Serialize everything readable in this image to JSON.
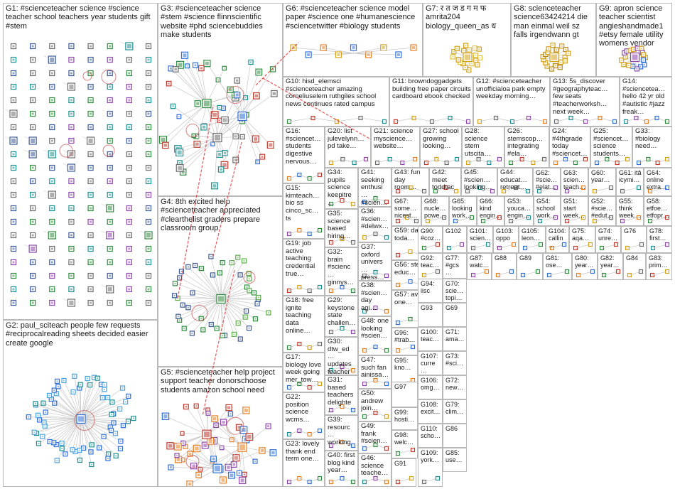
{
  "groups": [
    {
      "id": "G1",
      "label": "G1: #scienceteacher science #science teacher school teachers year students gift #stem",
      "style": "grid"
    },
    {
      "id": "G2",
      "label": "G2: paul_sciteach people few requests #reciprocalreading sheets decided easier create google",
      "style": "star"
    },
    {
      "id": "G3",
      "label": "G3: #scienceteacher science #stem #science flinnscientific website #phd sciencebuddies make students",
      "style": "cluster"
    },
    {
      "id": "G4",
      "label": "G4: 8th excited help #scienceteacher appreciated #clearthelist graders prepare classroom group",
      "style": "star"
    },
    {
      "id": "G5",
      "label": "G5: #scienceteacher help project support teacher donorschoose students amazon school need",
      "style": "cluster"
    },
    {
      "id": "G6",
      "label": "G6: #scienceteacher science model paper #science one #humanescience #sciencetwitter #biology students",
      "style": "row"
    },
    {
      "id": "G7",
      "label": "G7: र त ज ड ग म फ amrita204 biology_queen_as ध",
      "style": "star"
    },
    {
      "id": "G8",
      "label": "G8: scienceteacher science63424214 die man einmal weil sz falls irgendwann gt",
      "style": "star"
    },
    {
      "id": "G9",
      "label": "G9: apron science teacher scientist angieshandmade1 #etsy female utility womens vendor",
      "style": "star"
    },
    {
      "id": "G10",
      "label": "G10: hisd_elemsci #scienceteacher amazing corneliuselem ruthgiles school news continues rated campus",
      "style": "small"
    },
    {
      "id": "G11",
      "label": "G11: browndoggadgets building free paper circuits cardboard ebook checked",
      "style": "small"
    },
    {
      "id": "G12",
      "label": "G12: #scienceteacher unofficialoa park empty weekday morning…",
      "style": "small"
    },
    {
      "id": "G13",
      "label": "G13: 5s_discover #geographyteac… few seats #teacherworksh… next week…",
      "style": "small"
    },
    {
      "id": "G14",
      "label": "G14: #sciencetea… hello 42 yr old #autistic #jazz freak…",
      "style": "small"
    },
    {
      "id": "G15",
      "label": "G15: kimteach… bio ss cinco_sc… ts",
      "style": "small"
    },
    {
      "id": "G16",
      "label": "G16: #sciencet… students digestive nervous…",
      "style": "small"
    },
    {
      "id": "G17",
      "label": "G17: biology love week going mer_tow…",
      "style": "small"
    },
    {
      "id": "G18",
      "label": "G18: free ignite teaching data online…",
      "style": "small"
    },
    {
      "id": "G19",
      "label": "G19: job active teaching credential true…",
      "style": "small"
    },
    {
      "id": "G20",
      "label": "G20: list julevelynn… pd take…",
      "style": "small"
    },
    {
      "id": "G21",
      "label": "G21: science myscience… website…",
      "style": "small"
    },
    {
      "id": "G22",
      "label": "G22: position science wcms…",
      "style": "small"
    },
    {
      "id": "G23",
      "label": "G23: lovely thank end term one…",
      "style": "small"
    },
    {
      "id": "G24",
      "label": "G24: #4thgrade today #sciencet…",
      "style": "small"
    },
    {
      "id": "G25",
      "label": "G25: #sciencet… science students…",
      "style": "small"
    },
    {
      "id": "G26",
      "label": "G26: stemscop… integrating #ela…",
      "style": "small"
    },
    {
      "id": "G27",
      "label": "G27: school growing looking…",
      "style": "small"
    },
    {
      "id": "G28",
      "label": "G28: science stem utscita…",
      "style": "small"
    },
    {
      "id": "G29",
      "label": "G29: keystone state challen…",
      "style": "small"
    },
    {
      "id": "G30",
      "label": "G30: dtw_ed… updates teacher…",
      "style": "small"
    },
    {
      "id": "G31",
      "label": "G31: based teachers delighte…",
      "style": "small"
    },
    {
      "id": "G32",
      "label": "G32: brain #scienc… ginnys…",
      "style": "small"
    },
    {
      "id": "G33",
      "label": "G33: #biology need…",
      "style": "small"
    },
    {
      "id": "G34",
      "label": "G34: pupils science keepitre…",
      "style": "small"
    },
    {
      "id": "G35",
      "label": "G35: science based hiring…",
      "style": "small"
    },
    {
      "id": "G36",
      "label": "G36: #scien… #delwx…",
      "style": "small"
    },
    {
      "id": "G37",
      "label": "G37: oxford univers… press…",
      "style": "small"
    },
    {
      "id": "G38",
      "label": "G38: #scien… day agi…",
      "style": "small"
    },
    {
      "id": "G39",
      "label": "G39: resourc… working…",
      "style": "small"
    },
    {
      "id": "G40",
      "label": "G40: first blog kind year…",
      "style": "small"
    },
    {
      "id": "G41",
      "label": "G41: seeking enthusi… #scien…",
      "style": "small"
    },
    {
      "id": "G42",
      "label": "G42: meet toddtac… #scien…",
      "style": "small"
    },
    {
      "id": "G43",
      "label": "G43: fun day room…",
      "style": "small"
    },
    {
      "id": "G44",
      "label": "G44: educat… retreat…",
      "style": "small"
    },
    {
      "id": "G45",
      "label": "G45: #scien… looking…",
      "style": "small"
    },
    {
      "id": "G46",
      "label": "G46: science teache…",
      "style": "small"
    },
    {
      "id": "G47",
      "label": "G47: such fan ainissa…",
      "style": "small"
    },
    {
      "id": "G48",
      "label": "G48: one looking #scien…",
      "style": "small"
    },
    {
      "id": "G49",
      "label": "G49: frank #scien…",
      "style": "small"
    },
    {
      "id": "G50",
      "label": "G50: andrew join…",
      "style": "small"
    },
    {
      "id": "G51",
      "label": "G51: start week…",
      "style": "small"
    },
    {
      "id": "G52",
      "label": "G52: #scie… #edut…",
      "style": "small"
    },
    {
      "id": "G53",
      "label": "G53: youca… engin…",
      "style": "small"
    },
    {
      "id": "G54",
      "label": "G54: school work…",
      "style": "small"
    },
    {
      "id": "G55",
      "label": "G55: think week…",
      "style": "small"
    },
    {
      "id": "G56",
      "label": "G56: stem educ…",
      "style": "small"
    },
    {
      "id": "G57",
      "label": "G57: avid one…",
      "style": "small"
    },
    {
      "id": "G58",
      "label": "G58: etfoe… etfopr…",
      "style": "small"
    },
    {
      "id": "G59",
      "label": "G59: day toda…",
      "style": "small"
    },
    {
      "id": "G60",
      "label": "G60: year…",
      "style": "small"
    },
    {
      "id": "G61",
      "label": "G61: itâ icymi…",
      "style": "small"
    },
    {
      "id": "G62",
      "label": "G62: #scie… #elat…",
      "style": "small"
    },
    {
      "id": "G63",
      "label": "G63: scien… teach…",
      "style": "small"
    },
    {
      "id": "G64",
      "label": "G64: online extra…",
      "style": "small"
    },
    {
      "id": "G65",
      "label": "G65: looking work…",
      "style": "small"
    },
    {
      "id": "G66",
      "label": "G66: kind engin…",
      "style": "small"
    },
    {
      "id": "G67",
      "label": "G67: some… nicest…",
      "style": "small"
    },
    {
      "id": "G68",
      "label": "G68: nucle… powe…",
      "style": "small"
    },
    {
      "id": "G69",
      "label": "G69",
      "style": "small"
    },
    {
      "id": "G70",
      "label": "G70: scie… topi…",
      "style": "small"
    },
    {
      "id": "G71",
      "label": "G71: ama…",
      "style": "small"
    },
    {
      "id": "G72",
      "label": "G72: new…",
      "style": "small"
    },
    {
      "id": "G73",
      "label": "G73: #sci…",
      "style": "small"
    },
    {
      "id": "G74",
      "label": "G74: unre…",
      "style": "small"
    },
    {
      "id": "G75",
      "label": "G75: aqa…",
      "style": "small"
    },
    {
      "id": "G76",
      "label": "G76",
      "style": "small"
    },
    {
      "id": "G77",
      "label": "G77: #gcs…",
      "style": "small"
    },
    {
      "id": "G78",
      "label": "G78: first…",
      "style": "small"
    },
    {
      "id": "G79",
      "label": "G79: clim…",
      "style": "small"
    },
    {
      "id": "G80",
      "label": "G80: year…",
      "style": "small"
    },
    {
      "id": "G81",
      "label": "G81: ose…",
      "style": "small"
    },
    {
      "id": "G82",
      "label": "G82: year…",
      "style": "small"
    },
    {
      "id": "G83",
      "label": "G83: prim…",
      "style": "small"
    },
    {
      "id": "G84",
      "label": "G84",
      "style": "small"
    },
    {
      "id": "G85",
      "label": "G85: use…",
      "style": "small"
    },
    {
      "id": "G86",
      "label": "G86",
      "style": "small"
    },
    {
      "id": "G87",
      "label": "G87: watc…",
      "style": "small"
    },
    {
      "id": "G88",
      "label": "G88",
      "style": "small"
    },
    {
      "id": "G89",
      "label": "G89",
      "style": "small"
    },
    {
      "id": "G90",
      "label": "G90: #coz…",
      "style": "small"
    },
    {
      "id": "G91",
      "label": "G91",
      "style": "small"
    },
    {
      "id": "G92",
      "label": "G92: teac…",
      "style": "small"
    },
    {
      "id": "G93",
      "label": "G93",
      "style": "small"
    },
    {
      "id": "G94",
      "label": "G94: iisc",
      "style": "small"
    },
    {
      "id": "G95",
      "label": "G95: kno…",
      "style": "small"
    },
    {
      "id": "G96",
      "label": "G96: #trab…",
      "style": "small"
    },
    {
      "id": "G97",
      "label": "G97",
      "style": "small"
    },
    {
      "id": "G98",
      "label": "G98: welc…",
      "style": "small"
    },
    {
      "id": "G99",
      "label": "G99: hosti…",
      "style": "small"
    },
    {
      "id": "G100",
      "label": "G100: teac…",
      "style": "small"
    },
    {
      "id": "G101",
      "label": "G101: scien…",
      "style": "small"
    },
    {
      "id": "G102",
      "label": "G102",
      "style": "small"
    },
    {
      "id": "G103",
      "label": "G103: oppo…",
      "style": "small"
    },
    {
      "id": "G104",
      "label": "G104: callin…",
      "style": "small"
    },
    {
      "id": "G105",
      "label": "G105: leon…",
      "style": "small"
    },
    {
      "id": "G106",
      "label": "G106: omg…",
      "style": "small"
    },
    {
      "id": "G107",
      "label": "G107: curre…",
      "style": "small"
    },
    {
      "id": "G108",
      "label": "G108: excit…",
      "style": "small"
    },
    {
      "id": "G109",
      "label": "G109: york…",
      "style": "small"
    },
    {
      "id": "G110",
      "label": "G110: scho…",
      "style": "small"
    }
  ],
  "colors": {
    "edge": "#c8c8c8",
    "edge_strong": "#e03030",
    "box_border": "#b9b9b9",
    "node_blue": "#2f6fd6",
    "node_green": "#2e8b3d",
    "node_red": "#c0392b",
    "node_gray": "#6b6b6b",
    "node_gold": "#d4a017",
    "node_teal": "#1b8f8f",
    "ring": "#c44b4b"
  }
}
